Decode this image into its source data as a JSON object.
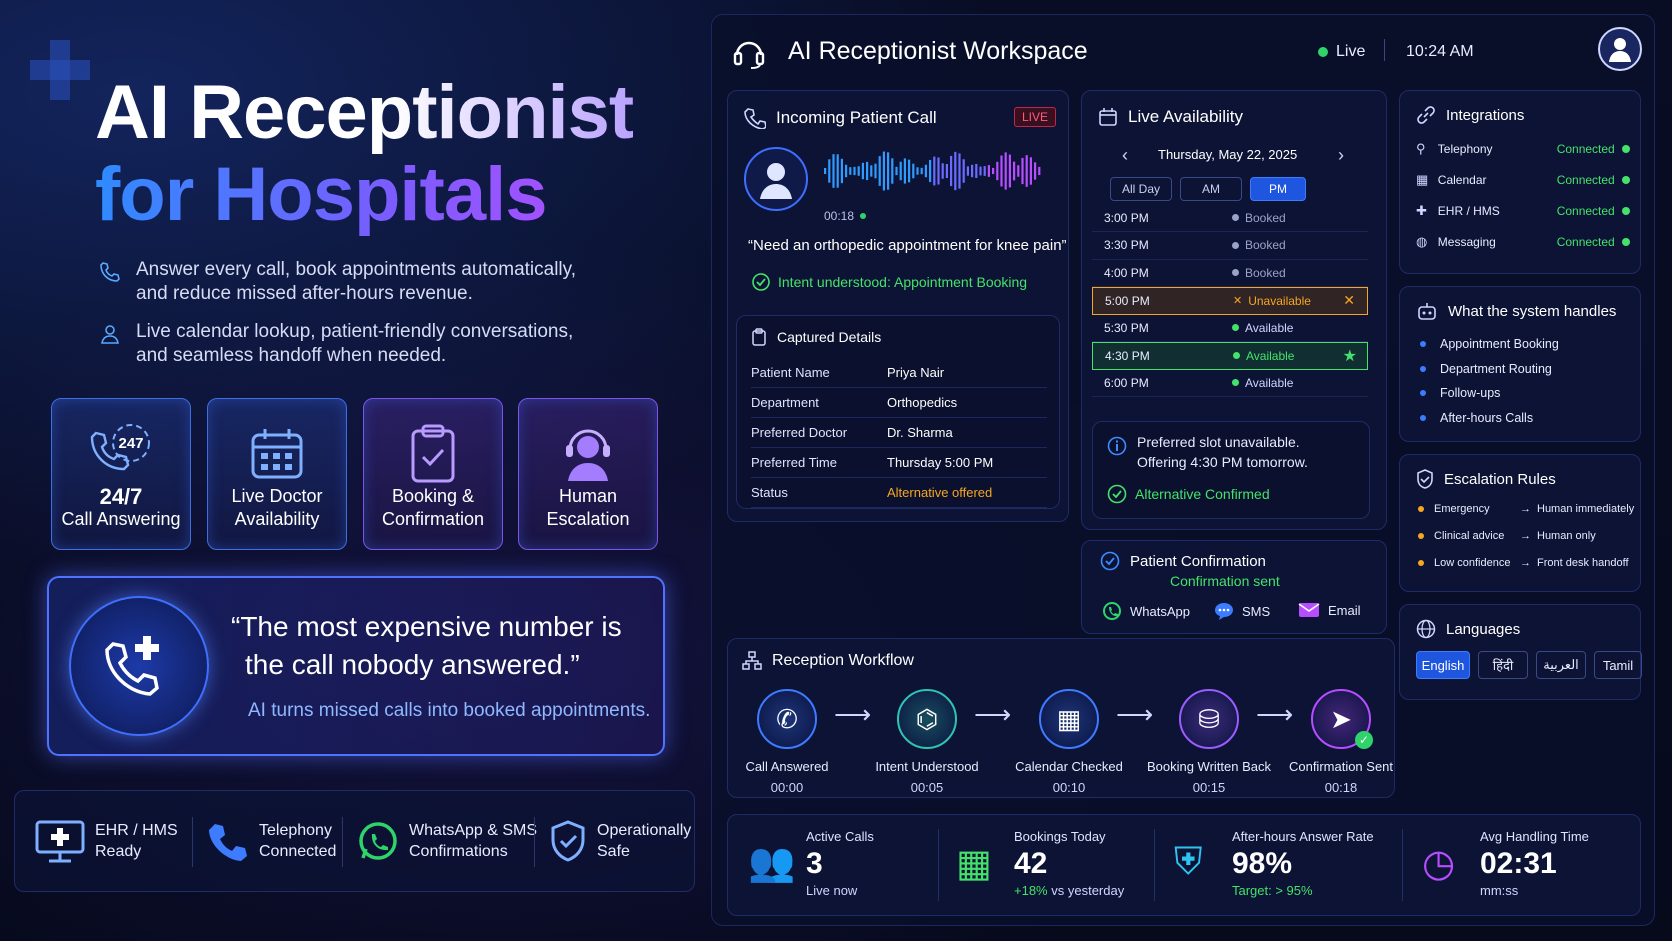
{
  "hero": {
    "title_line1": "AI Receptionist",
    "title_line2": "for Hospitals",
    "feature1": "Answer every call, book appointments automatically, and reduce missed after-hours revenue.",
    "feature2": "Live calendar lookup, patient-friendly conversations, and seamless handoff when needed.",
    "cards": [
      {
        "line1": "24/7",
        "line2": "Call Answering",
        "badge": "247"
      },
      {
        "line1": "Live Doctor",
        "line2": "Availability"
      },
      {
        "line1": "Booking &",
        "line2": "Confirmation"
      },
      {
        "line1": "Human",
        "line2": "Escalation"
      }
    ],
    "quote_line1": "“The most expensive number is",
    "quote_line2": "the call nobody answered.”",
    "quote_sub": "AI turns missed calls into booked appointments.",
    "bottom": [
      {
        "l1": "EHR / HMS",
        "l2": "Ready"
      },
      {
        "l1": "Telephony",
        "l2": "Connected"
      },
      {
        "l1": "WhatsApp & SMS",
        "l2": "Confirmations"
      },
      {
        "l1": "Operationally",
        "l2": "Safe"
      }
    ]
  },
  "workspace": {
    "title": "AI Receptionist Workspace",
    "status": "Live",
    "time": "10:24 AM"
  },
  "call": {
    "title": "Incoming Patient Call",
    "badge": "LIVE",
    "timer": "00:18",
    "utterance": "“Need an orthopedic appointment for knee pain”",
    "intent": "Intent understood: Appointment Booking",
    "details_title": "Captured Details",
    "details": [
      {
        "k": "Patient Name",
        "v": "Priya Nair"
      },
      {
        "k": "Department",
        "v": "Orthopedics"
      },
      {
        "k": "Preferred Doctor",
        "v": "Dr. Sharma"
      },
      {
        "k": "Preferred Time",
        "v": "Thursday 5:00 PM"
      },
      {
        "k": "Status",
        "v": "Alternative offered"
      }
    ]
  },
  "availability": {
    "title": "Live Availability",
    "date": "Thursday, May 22, 2025",
    "tabs": [
      "All Day",
      "AM",
      "PM"
    ],
    "selected_tab": "PM",
    "slots": [
      {
        "time": "3:00 PM",
        "status": "Booked"
      },
      {
        "time": "3:30 PM",
        "status": "Booked"
      },
      {
        "time": "4:00 PM",
        "status": "Booked"
      },
      {
        "time": "5:00 PM",
        "status": "Unavailable"
      },
      {
        "time": "5:30 PM",
        "status": "Available"
      },
      {
        "time": "4:30 PM",
        "status": "Available"
      },
      {
        "time": "6:00 PM",
        "status": "Available"
      }
    ],
    "note_line1": "Preferred slot unavailable.",
    "note_line2": "Offering 4:30 PM tomorrow.",
    "confirmed": "Alternative Confirmed"
  },
  "confirmation": {
    "title": "Patient Confirmation",
    "status": "Confirmation sent",
    "channels": [
      "WhatsApp",
      "SMS",
      "Email"
    ]
  },
  "integrations": {
    "title": "Integrations",
    "items": [
      {
        "name": "Telephony",
        "status": "Connected"
      },
      {
        "name": "Calendar",
        "status": "Connected"
      },
      {
        "name": "EHR / HMS",
        "status": "Connected"
      },
      {
        "name": "Messaging",
        "status": "Connected"
      }
    ]
  },
  "handles": {
    "title": "What the system handles",
    "items": [
      "Appointment Booking",
      "Department Routing",
      "Follow-ups",
      "After-hours Calls"
    ]
  },
  "escalation": {
    "title": "Escalation Rules",
    "items": [
      {
        "k": "Emergency",
        "v": "Human immediately"
      },
      {
        "k": "Clinical advice",
        "v": "Human only"
      },
      {
        "k": "Low confidence",
        "v": "Front desk handoff"
      }
    ]
  },
  "languages": {
    "title": "Languages",
    "items": [
      "English",
      "हिंदी",
      "العربية",
      "Tamil"
    ],
    "selected": "English"
  },
  "workflow": {
    "title": "Reception Workflow",
    "steps": [
      {
        "label": "Call Answered",
        "time": "00:00",
        "color": "#3d7bff"
      },
      {
        "label": "Intent Understood",
        "time": "00:05",
        "color": "#2fc3b0"
      },
      {
        "label": "Calendar Checked",
        "time": "00:10",
        "color": "#3d7bff"
      },
      {
        "label": "Booking Written Back",
        "time": "00:15",
        "color": "#9b5cff"
      },
      {
        "label": "Confirmation Sent",
        "time": "00:18",
        "color": "#b64dff"
      }
    ]
  },
  "metrics": [
    {
      "label": "Active Calls",
      "value": "3",
      "sub": "Live now"
    },
    {
      "label": "Bookings Today",
      "value": "42",
      "sub_hl": "+18%",
      "sub": " vs yesterday"
    },
    {
      "label": "After-hours Answer Rate",
      "value": "98%",
      "sub": "Target: > 95%"
    },
    {
      "label": "Avg Handling Time",
      "value": "02:31",
      "sub": "mm:ss"
    }
  ]
}
